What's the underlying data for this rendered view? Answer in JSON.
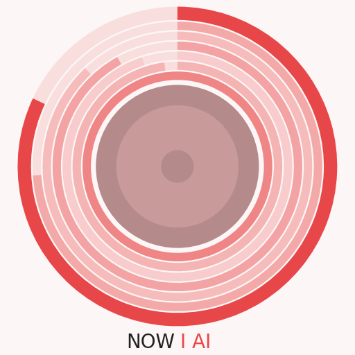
{
  "chart_data": {
    "type": "radial_bar",
    "categories": [
      null,
      null,
      null,
      null,
      null,
      null,
      null
    ],
    "values": [
      82,
      74,
      88,
      92,
      95,
      98,
      100
    ],
    "colors": [
      "#e8474a",
      "#f4a9a9",
      "#f6bcbc",
      "#f3a3a3",
      "#f8cccc",
      "#f5b4b4",
      "#ef8585"
    ],
    "xlim": [
      0,
      100
    ],
    "tick_labels": false,
    "caption": [
      {
        "text": "NOW",
        "color": "#222222"
      },
      {
        "text": "I AI",
        "color": "#e8474a"
      }
    ]
  }
}
